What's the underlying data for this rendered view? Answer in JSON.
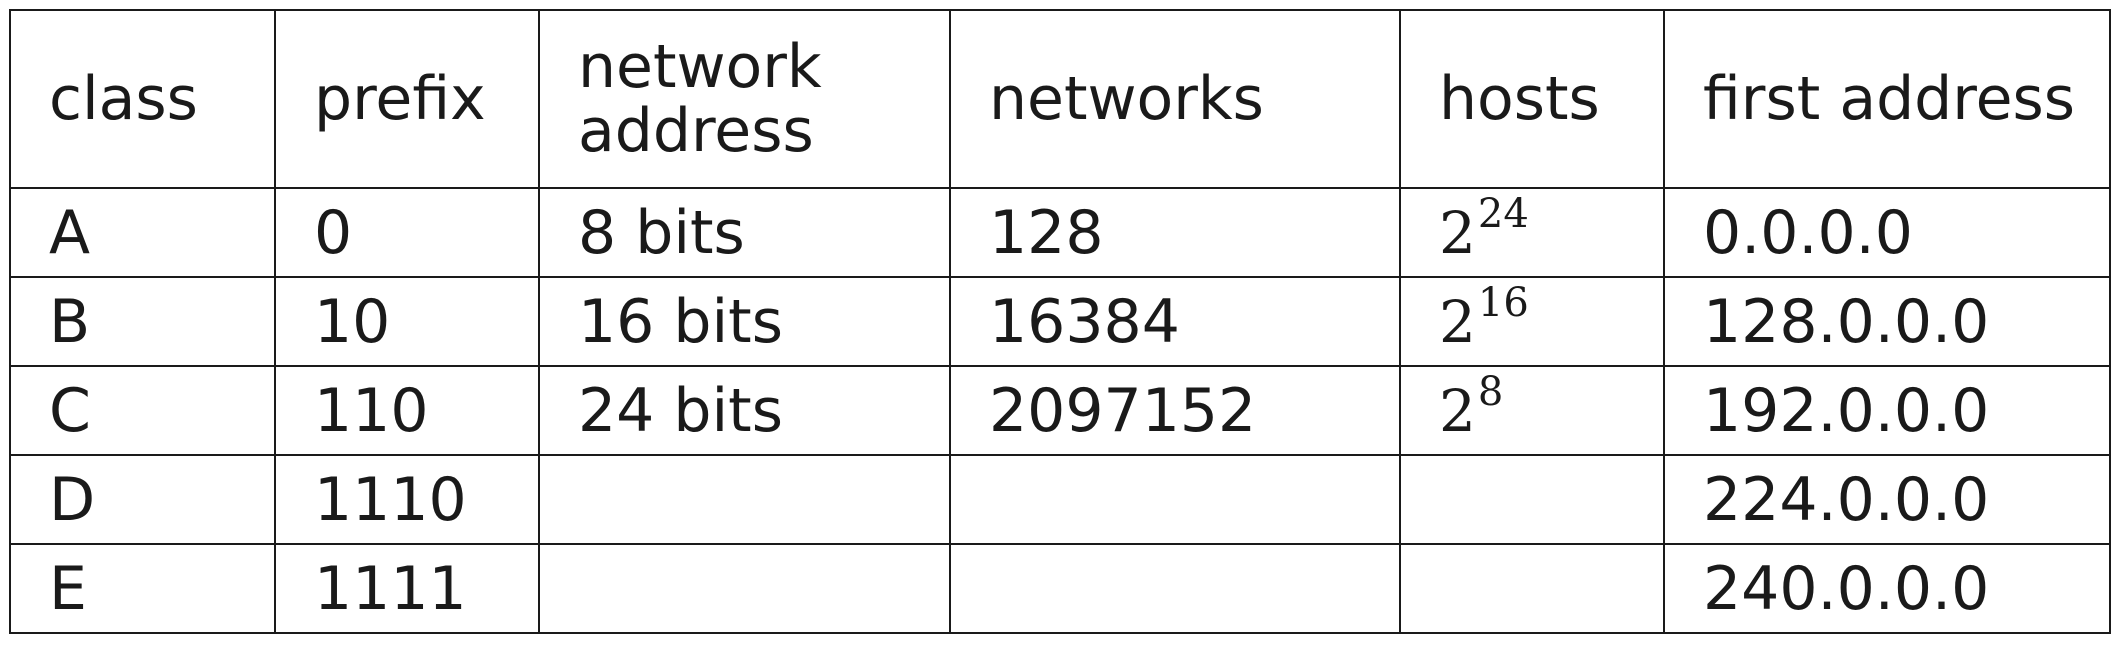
{
  "table": {
    "headers": [
      "class",
      "prefix",
      "network address",
      "networks",
      "hosts",
      "first address"
    ],
    "rows": [
      {
        "class": "A",
        "prefix": "0",
        "network_address": "8 bits",
        "networks": "128",
        "hosts": {
          "base": "2",
          "exponent": "24"
        },
        "first_address": "0.0.0.0"
      },
      {
        "class": "B",
        "prefix": "10",
        "network_address": "16 bits",
        "networks": "16384",
        "hosts": {
          "base": "2",
          "exponent": "16"
        },
        "first_address": "128.0.0.0"
      },
      {
        "class": "C",
        "prefix": "110",
        "network_address": "24 bits",
        "networks": "2097152",
        "hosts": {
          "base": "2",
          "exponent": "8"
        },
        "first_address": "192.0.0.0"
      },
      {
        "class": "D",
        "prefix": "1110",
        "network_address": "",
        "networks": "",
        "hosts": null,
        "first_address": "224.0.0.0"
      },
      {
        "class": "E",
        "prefix": "1111",
        "network_address": "",
        "networks": "",
        "hosts": null,
        "first_address": "240.0.0.0"
      }
    ]
  }
}
